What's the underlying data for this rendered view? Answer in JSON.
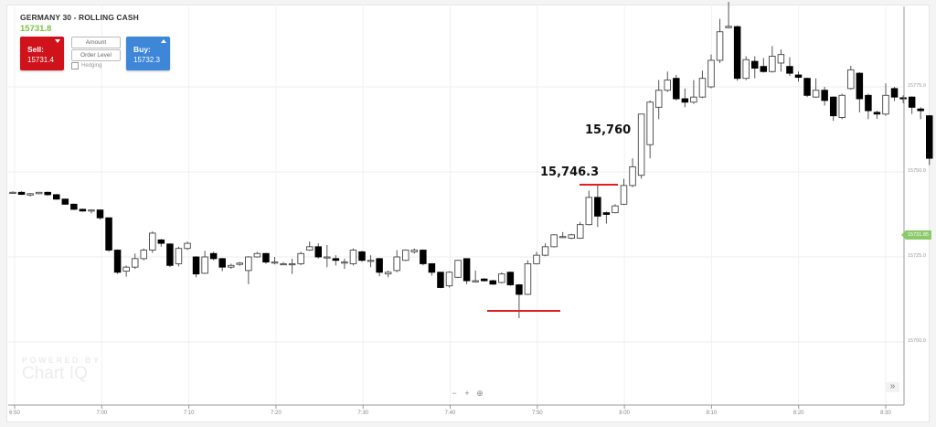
{
  "header": {
    "instrument": "GERMANY 30 - ROLLING CASH",
    "last_price": "15731.8"
  },
  "trade_panel": {
    "sell_label": "Sell:",
    "sell_price": "15731.4",
    "buy_label": "Buy:",
    "buy_price": "15732.3",
    "amount_label": "Amount",
    "order_level_label": "Order Level",
    "hedging_label": "Hedging"
  },
  "colors": {
    "sell": "#d0121b",
    "buy": "#3d86d8",
    "last_price": "#7cc242",
    "annotation_line": "#e0201f",
    "price_tag": "#8bc96b"
  },
  "annotations": {
    "level_1": "15,746.3",
    "level_2": "15,760"
  },
  "current_price_tag": "15731.85",
  "watermark": {
    "line1": "POWERED BY",
    "line2": "Chart IQ"
  },
  "controls": {
    "zoom_out": "−",
    "zoom_in": "+",
    "zoom_reset": "⊕",
    "forward": "»"
  },
  "chart_data": {
    "type": "candlestick",
    "title": "GERMANY 30 - ROLLING CASH",
    "xlabel": "",
    "ylabel": "",
    "x_ticks": [
      "6:50",
      "7:00",
      "7:10",
      "7:20",
      "7:30",
      "7:40",
      "7:50",
      "8:00",
      "8:10",
      "8:20",
      "8:30"
    ],
    "y_ticks": [
      "15775.0",
      "15750.0",
      "15725.0",
      "15700.0"
    ],
    "ylim": [
      15684,
      15800
    ],
    "grid": true,
    "interval": "1 min",
    "ohlc": [
      [
        15743.8,
        15744.0,
        15744.3,
        15743.6
      ],
      [
        15744.0,
        15743.4,
        15744.3,
        15743.2
      ],
      [
        15743.2,
        15743.6,
        15743.8,
        15742.8
      ],
      [
        15743.6,
        15744.0,
        15744.1,
        15743.4
      ],
      [
        15744.0,
        15743.3,
        15744.2,
        15743.0
      ],
      [
        15743.3,
        15742.0,
        15743.5,
        15741.8
      ],
      [
        15742.0,
        15740.5,
        15742.1,
        15740.3
      ],
      [
        15740.5,
        15739.0,
        15740.7,
        15738.8
      ],
      [
        15739.0,
        15738.5,
        15739.2,
        15738.3
      ],
      [
        15738.5,
        15738.8,
        15739.0,
        15737.8
      ],
      [
        15738.8,
        15736.5,
        15738.9,
        15736.0
      ],
      [
        15736.5,
        15727.0,
        15736.6,
        15726.5
      ],
      [
        15727.0,
        15720.5,
        15727.2,
        15720.0
      ],
      [
        15720.8,
        15722.0,
        15722.5,
        15719.2
      ],
      [
        15722.0,
        15724.5,
        15726.0,
        15721.5
      ],
      [
        15724.5,
        15727.0,
        15727.5,
        15724.0
      ],
      [
        15727.0,
        15732.0,
        15732.5,
        15726.2
      ],
      [
        15730.0,
        15729.0,
        15730.3,
        15728.0
      ],
      [
        15728.8,
        15722.5,
        15729.0,
        15722.0
      ],
      [
        15723.0,
        15727.5,
        15728.0,
        15722.2
      ],
      [
        15727.5,
        15729.0,
        15729.5,
        15727.0
      ],
      [
        15725.0,
        15720.0,
        15725.2,
        15719.0
      ],
      [
        15720.2,
        15725.0,
        15726.8,
        15720.0
      ],
      [
        15726.0,
        15724.5,
        15726.5,
        15724.0
      ],
      [
        15724.5,
        15722.0,
        15724.7,
        15720.8
      ],
      [
        15722.0,
        15722.5,
        15723.0,
        15721.5
      ],
      [
        15722.8,
        15723.2,
        15723.5,
        15722.4
      ],
      [
        15721.0,
        15725.0,
        15725.2,
        15717.0
      ],
      [
        15725.0,
        15726.0,
        15726.5,
        15724.8
      ],
      [
        15726.0,
        15723.5,
        15726.2,
        15723.0
      ],
      [
        15723.5,
        15723.5,
        15725.0,
        15722.8
      ],
      [
        15723.0,
        15723.0,
        15723.5,
        15722.6
      ],
      [
        15723.0,
        15723.0,
        15724.5,
        15720.0
      ],
      [
        15723.0,
        15726.0,
        15726.5,
        15722.6
      ],
      [
        15727.0,
        15728.0,
        15729.5,
        15726.8
      ],
      [
        15728.0,
        15725.0,
        15729.0,
        15724.5
      ],
      [
        15725.0,
        15725.0,
        15728.5,
        15722.0
      ],
      [
        15724.5,
        15724.0,
        15725.5,
        15722.5
      ],
      [
        15723.5,
        15723.5,
        15724.5,
        15721.5
      ],
      [
        15723.0,
        15727.0,
        15727.5,
        15722.5
      ],
      [
        15726.5,
        15724.0,
        15726.8,
        15723.6
      ],
      [
        15724.0,
        15724.0,
        15725.5,
        15722.0
      ],
      [
        15724.5,
        15720.5,
        15724.7,
        15719.3
      ],
      [
        15720.0,
        15720.5,
        15721.0,
        15719.0
      ],
      [
        15721.0,
        15725.0,
        15727.0,
        15720.5
      ],
      [
        15724.0,
        15727.0,
        15727.2,
        15723.8
      ],
      [
        15726.5,
        15727.0,
        15727.5,
        15726.0
      ],
      [
        15727.0,
        15723.0,
        15727.2,
        15722.5
      ],
      [
        15723.0,
        15720.5,
        15723.2,
        15719.5
      ],
      [
        15720.5,
        15716.0,
        15720.6,
        15715.8
      ],
      [
        15716.5,
        15720.5,
        15720.8,
        15716.0
      ],
      [
        15719.0,
        15724.0,
        15724.2,
        15718.8
      ],
      [
        15724.5,
        15718.0,
        15724.6,
        15717.0
      ],
      [
        15718.0,
        15718.0,
        15721.0,
        15717.5
      ],
      [
        15718.5,
        15718.0,
        15718.8,
        15717.8
      ],
      [
        15718.0,
        15717.0,
        15718.3,
        15716.8
      ],
      [
        15717.5,
        15720.0,
        15720.5,
        15717.2
      ],
      [
        15720.5,
        15716.8,
        15720.7,
        15716.5
      ],
      [
        15716.8,
        15714.0,
        15717.0,
        15707.0
      ],
      [
        15714.0,
        15723.0,
        15724.0,
        15713.8
      ],
      [
        15723.0,
        15725.5,
        15726.5,
        15722.8
      ],
      [
        15725.5,
        15728.0,
        15729.0,
        15725.2
      ],
      [
        15728.0,
        15731.5,
        15731.7,
        15727.8
      ],
      [
        15731.0,
        15731.0,
        15732.3,
        15730.5
      ],
      [
        15730.5,
        15731.5,
        15731.8,
        15730.2
      ],
      [
        15730.5,
        15734.5,
        15735.3,
        15730.3
      ],
      [
        15734.5,
        15742.5,
        15744.5,
        15734.3
      ],
      [
        15742.5,
        15737.0,
        15746.3,
        15733.8
      ],
      [
        15738.0,
        15737.5,
        15738.3,
        15734.8
      ],
      [
        15738.0,
        15740.0,
        15740.5,
        15737.8
      ],
      [
        15740.5,
        15746.0,
        15748.0,
        15740.3
      ],
      [
        15746.0,
        15751.5,
        15754.0,
        15745.5
      ],
      [
        15749.0,
        15767.0,
        15760.0,
        15748.0
      ],
      [
        15758.0,
        15770.5,
        15771.0,
        15754.0
      ],
      [
        15769.0,
        15774.0,
        15777.0,
        15765.5
      ],
      [
        15774.0,
        15777.0,
        15779.5,
        15773.5
      ],
      [
        15777.5,
        15771.5,
        15778.5,
        15771.0
      ],
      [
        15771.5,
        15770.5,
        15774.5,
        15769.0
      ],
      [
        15770.5,
        15772.0,
        15777.0,
        15770.0
      ],
      [
        15772.0,
        15777.5,
        15779.8,
        15771.7
      ],
      [
        15775.0,
        15782.8,
        15784.5,
        15774.6
      ],
      [
        15782.8,
        15791.2,
        15795.0,
        15782.0
      ],
      [
        15792.4,
        15792.8,
        15800.0,
        15792.2
      ],
      [
        15792.7,
        15777.5,
        15793.0,
        15776.8
      ],
      [
        15777.5,
        15783.0,
        15784.0,
        15777.0
      ],
      [
        15782.5,
        15780.5,
        15784.0,
        15777.5
      ],
      [
        15781.0,
        15779.5,
        15783.5,
        15779.2
      ],
      [
        15779.5,
        15784.0,
        15787.0,
        15779.2
      ],
      [
        15782.0,
        15784.5,
        15786.0,
        15779.5
      ],
      [
        15781.0,
        15779.0,
        15783.7,
        15778.2
      ],
      [
        15778.5,
        15777.8,
        15779.5,
        15776.5
      ],
      [
        15777.5,
        15772.5,
        15777.7,
        15772.0
      ],
      [
        15772.0,
        15774.0,
        15777.5,
        15771.8
      ],
      [
        15774.0,
        15771.0,
        15775.0,
        15769.5
      ],
      [
        15772.0,
        15766.5,
        15772.2,
        15765.0
      ],
      [
        15766.0,
        15772.5,
        15773.0,
        15765.5
      ],
      [
        15774.5,
        15780.0,
        15781.2,
        15774.2
      ],
      [
        15779.0,
        15771.5,
        15779.3,
        15767.5
      ],
      [
        15772.5,
        15768.0,
        15773.0,
        15765.5
      ],
      [
        15767.5,
        15767.0,
        15768.0,
        15765.6
      ],
      [
        15767.0,
        15772.5,
        15776.0,
        15766.5
      ],
      [
        15774.5,
        15772.0,
        15775.0,
        15770.8
      ],
      [
        15771.8,
        15771.5,
        15772.5,
        15770.2
      ],
      [
        15772.0,
        15769.0,
        15772.2,
        15767.0
      ],
      [
        15768.5,
        15768.0,
        15769.0,
        15765.5
      ],
      [
        15766.5,
        15754.0,
        15766.7,
        15752.0
      ]
    ]
  }
}
